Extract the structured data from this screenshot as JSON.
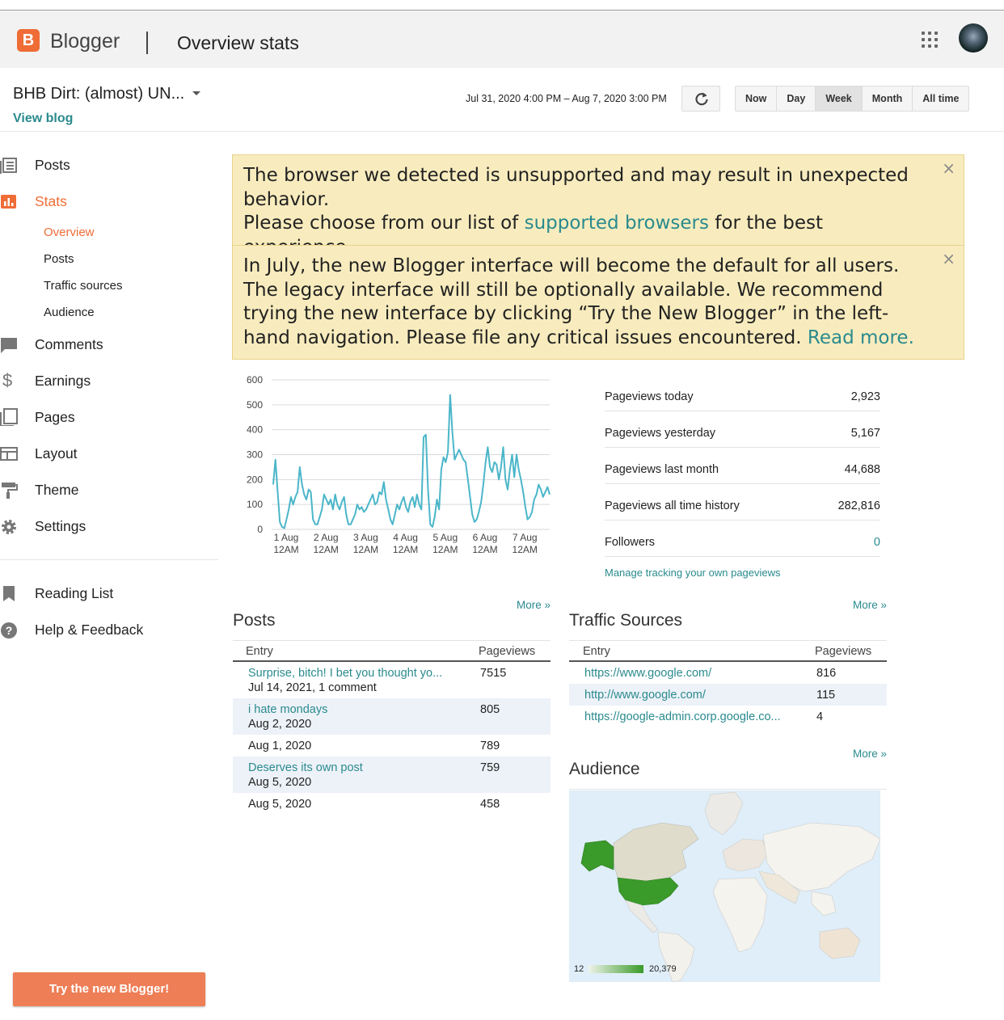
{
  "header": {
    "app_name": "Blogger",
    "page_title": "Overview stats",
    "brand_color": "#ef6c36"
  },
  "blog": {
    "name": "BHB Dirt: (almost) UN...",
    "view_blog": "View blog"
  },
  "toolbar": {
    "date_range": "Jul 31, 2020 4:00 PM – Aug 7, 2020 3:00 PM",
    "ranges": [
      "Now",
      "Day",
      "Week",
      "Month",
      "All time"
    ],
    "active_range": "Week"
  },
  "sidebar": {
    "items": [
      {
        "label": "Posts",
        "icon": "posts-icon"
      },
      {
        "label": "Stats",
        "icon": "stats-icon"
      },
      {
        "label": "Comments",
        "icon": "comments-icon"
      },
      {
        "label": "Earnings",
        "icon": "dollar-icon"
      },
      {
        "label": "Pages",
        "icon": "pages-icon"
      },
      {
        "label": "Layout",
        "icon": "layout-icon"
      },
      {
        "label": "Theme",
        "icon": "paint-roller-icon"
      },
      {
        "label": "Settings",
        "icon": "gear-icon"
      }
    ],
    "stats_sub": [
      "Overview",
      "Posts",
      "Traffic sources",
      "Audience"
    ],
    "bottom_items": [
      {
        "label": "Reading List",
        "icon": "bookmark-icon"
      },
      {
        "label": "Help & Feedback",
        "icon": "help-icon"
      }
    ],
    "try_button": "Try the new Blogger!"
  },
  "banners": {
    "browser": {
      "line1": "The browser we detected is unsupported and may result in unexpected behavior.",
      "line2_pre": "Please choose from our list of ",
      "line2_link": "supported browsers",
      "line2_post": " for the best experience."
    },
    "new_ui": {
      "text": "In July, the new Blogger interface will become the default for all users. The legacy interface will still be optionally available. We recommend trying the new interface by clicking “Try the New Blogger” in the left-hand navigation. Please file any critical issues encountered. ",
      "link": "Read more."
    },
    "close_glyph": "×"
  },
  "chart_data": {
    "type": "line",
    "ylim": [
      0,
      600
    ],
    "yticks": [
      "600",
      "500",
      "400",
      "300",
      "200",
      "100",
      "0"
    ],
    "xticks": [
      {
        "line1": "1 Aug",
        "line2": "12AM"
      },
      {
        "line1": "2 Aug",
        "line2": "12AM"
      },
      {
        "line1": "3 Aug",
        "line2": "12AM"
      },
      {
        "line1": "4 Aug",
        "line2": "12AM"
      },
      {
        "line1": "5 Aug",
        "line2": "12AM"
      },
      {
        "line1": "6 Aug",
        "line2": "12AM"
      },
      {
        "line1": "7 Aug",
        "line2": "12AM"
      }
    ],
    "series_color": "#4bb6c9",
    "values": [
      180,
      280,
      150,
      30,
      10,
      5,
      40,
      80,
      130,
      100,
      130,
      150,
      250,
      180,
      140,
      120,
      160,
      150,
      40,
      20,
      20,
      50,
      80,
      140,
      120,
      100,
      120,
      80,
      140,
      100,
      80,
      110,
      130,
      60,
      20,
      20,
      40,
      60,
      100,
      80,
      90,
      70,
      80,
      100,
      120,
      140,
      100,
      110,
      150,
      140,
      190,
      120,
      80,
      40,
      20,
      60,
      100,
      80,
      110,
      130,
      90,
      70,
      110,
      130,
      90,
      140,
      100,
      80,
      370,
      380,
      160,
      20,
      10,
      50,
      120,
      80,
      240,
      290,
      270,
      310,
      540,
      390,
      280,
      300,
      320,
      300,
      280,
      270,
      200,
      130,
      60,
      30,
      40,
      70,
      110,
      180,
      270,
      330,
      250,
      230,
      270,
      260,
      200,
      250,
      330,
      200,
      160,
      240,
      300,
      210,
      300,
      240,
      200,
      150,
      90,
      40,
      50,
      70,
      120,
      140,
      180,
      160,
      130,
      150,
      170,
      140
    ]
  },
  "summary": {
    "rows": [
      {
        "label": "Pageviews today",
        "value": "2,923"
      },
      {
        "label": "Pageviews yesterday",
        "value": "5,167"
      },
      {
        "label": "Pageviews last month",
        "value": "44,688"
      },
      {
        "label": "Pageviews all time history",
        "value": "282,816"
      },
      {
        "label": "Followers",
        "value": "0"
      }
    ],
    "manage_link": "Manage tracking your own pageviews"
  },
  "posts": {
    "title": "Posts",
    "more": "More »",
    "col_entry": "Entry",
    "col_pageviews": "Pageviews",
    "rows": [
      {
        "title": "Surprise, bitch! I bet you thought yo...",
        "meta": "Jul 14, 2021, 1 comment",
        "views": "7515"
      },
      {
        "title": "i hate mondays",
        "meta": "Aug 2, 2020",
        "views": "805"
      },
      {
        "title": "",
        "meta": "Aug 1, 2020",
        "views": "789"
      },
      {
        "title": "Deserves its own post",
        "meta": "Aug 5, 2020",
        "views": "759"
      },
      {
        "title": "",
        "meta": "Aug 5, 2020",
        "views": "458"
      }
    ]
  },
  "traffic": {
    "title": "Traffic Sources",
    "more": "More »",
    "col_entry": "Entry",
    "col_pageviews": "Pageviews",
    "rows": [
      {
        "url": "https://www.google.com/",
        "views": "816"
      },
      {
        "url": "http://www.google.com/",
        "views": "115"
      },
      {
        "url": "https://google-admin.corp.google.co...",
        "views": "4"
      }
    ]
  },
  "audience": {
    "title": "Audience",
    "more": "More »",
    "legend_min": "12",
    "legend_max": "20,379",
    "color_low": "#e6f0dc",
    "color_high": "#3a9a2a"
  }
}
